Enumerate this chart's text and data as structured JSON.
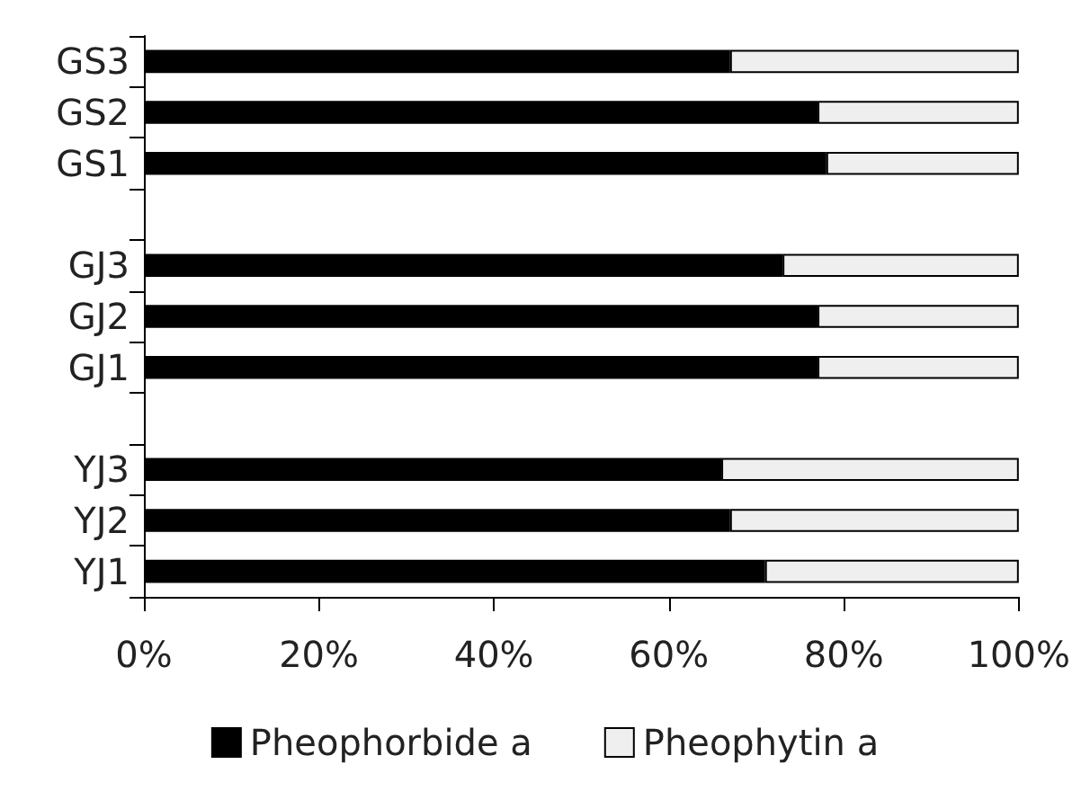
{
  "chart_data": {
    "type": "bar",
    "orientation": "horizontal",
    "stacked": true,
    "categories": [
      "GS3",
      "GS2",
      "GS1",
      null,
      "GJ3",
      "GJ2",
      "GJ1",
      null,
      "YJ3",
      "YJ2",
      "YJ1"
    ],
    "series": [
      {
        "name": "Pheophorbide a",
        "color": "#000000",
        "values": [
          67,
          77,
          78,
          null,
          73,
          77,
          77,
          null,
          66,
          67,
          71
        ]
      },
      {
        "name": "Pheophytin a",
        "color": "#efefef",
        "values": [
          33,
          23,
          22,
          null,
          27,
          23,
          23,
          null,
          34,
          33,
          29
        ]
      }
    ],
    "xlim": [
      0,
      100
    ],
    "xticks": [
      {
        "value": 0,
        "label": "0%"
      },
      {
        "value": 20,
        "label": "20%"
      },
      {
        "value": 40,
        "label": "40%"
      },
      {
        "value": 60,
        "label": "60%"
      },
      {
        "value": 80,
        "label": "80%"
      },
      {
        "value": 100,
        "label": "100%"
      }
    ],
    "grid": false,
    "legend": "bottom"
  }
}
